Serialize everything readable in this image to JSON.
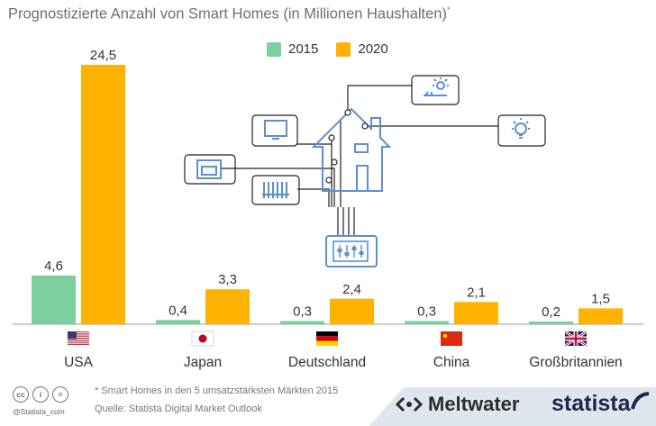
{
  "title": "Prognostizierte Anzahl von Smart Homes (in Millionen Haushalten)",
  "title_mark": "*",
  "chart_data": {
    "type": "bar",
    "title": "Prognostizierte Anzahl von Smart Homes (in Millionen Haushalten)",
    "categories": [
      "USA",
      "Japan",
      "Deutschland",
      "China",
      "Großbritannien"
    ],
    "series": [
      {
        "name": "2015",
        "color": "#7ecfa0",
        "values": [
          4.6,
          0.4,
          0.3,
          0.3,
          0.2
        ],
        "labels": [
          "4,6",
          "0,4",
          "0,3",
          "0,3",
          "0,2"
        ]
      },
      {
        "name": "2020",
        "color": "#ffb300",
        "values": [
          24.5,
          3.3,
          2.4,
          2.1,
          1.5
        ],
        "labels": [
          "24,5",
          "3,3",
          "2,4",
          "2,1",
          "1,5"
        ]
      }
    ],
    "ylim": [
      0,
      24.5
    ],
    "xlabel": "",
    "ylabel": "",
    "grid": false,
    "legend_position": "top-center"
  },
  "legend": {
    "item_2015": "2015",
    "item_2020": "2020"
  },
  "footer": {
    "note": "* Smart Homes in den 5 umsatzstärksten Märkten 2015",
    "source": "Quelle: Statista Digital Market Outlook",
    "handle": "@Statista_com",
    "cc_icons": [
      "cc",
      "i",
      "="
    ],
    "meltwater": "Meltwater",
    "statista": "statista"
  }
}
